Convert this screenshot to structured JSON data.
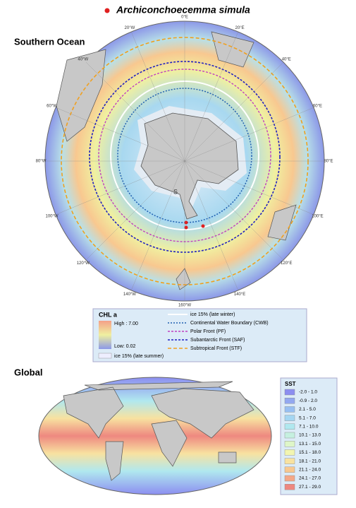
{
  "title": "Archiconchoecemma simula",
  "southern_ocean": {
    "heading": "Southern Ocean",
    "longitudes": [
      "0°E",
      "20°E",
      "40°E",
      "60°E",
      "80°E",
      "100°E",
      "120°E",
      "140°E",
      "160°W",
      "140°W",
      "120°W",
      "100°W",
      "80°W",
      "60°W",
      "40°W",
      "20°W"
    ],
    "marker": "S"
  },
  "legend": {
    "chl_title": "CHL a",
    "chl_high": "High : 7.00",
    "chl_low": "Low: 0.02",
    "ice_summer": "ice 15% (late summer)",
    "ice_winter": "ice 15% (late winter)",
    "cwb": "Continental Water Boundary (CWB)",
    "pf": "Polar Front (PF)",
    "saf": "Subantarctic Front (SAF)",
    "stf": "Subtropical Front (STF)"
  },
  "global": {
    "heading": "Global",
    "sst_title": "SST",
    "sst_classes": [
      {
        "label": "-2.0 - 1.0",
        "color": "#8c8ef0"
      },
      {
        "label": "-0.9 - 2.0",
        "color": "#93a8f0"
      },
      {
        "label": "2.1 - 5.0",
        "color": "#98bff2"
      },
      {
        "label": "5.1 - 7.0",
        "color": "#a4d6f2"
      },
      {
        "label": "7.1 - 10.0",
        "color": "#b0e8ef"
      },
      {
        "label": "10.1 - 13.0",
        "color": "#c5f0e0"
      },
      {
        "label": "13.1 - 15.0",
        "color": "#def6c8"
      },
      {
        "label": "15.1 - 18.0",
        "color": "#f2f5b0"
      },
      {
        "label": "18.1 - 21.0",
        "color": "#f8e2a0"
      },
      {
        "label": "21.1 - 24.0",
        "color": "#f8c890"
      },
      {
        "label": "24.1 - 27.0",
        "color": "#f4a888"
      },
      {
        "label": "27.1 - 29.0",
        "color": "#ee8880"
      }
    ]
  }
}
